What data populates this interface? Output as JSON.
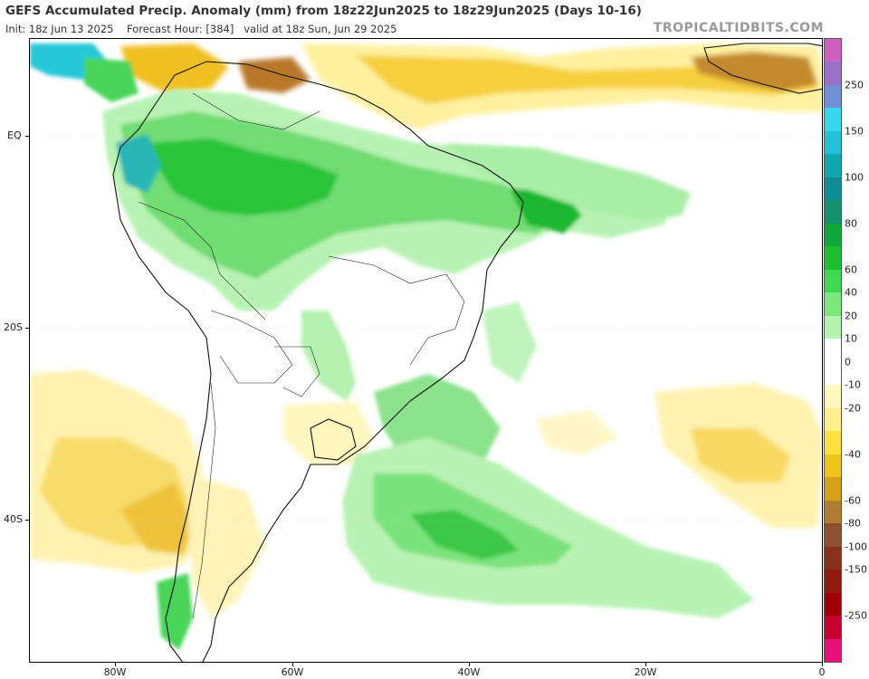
{
  "header": {
    "title": "GEFS Accumulated Precip. Anomaly (mm) from 18z22Jun2025 to 18z29Jun2025 (Days 10-16)",
    "init": "Init: 18z Jun 13 2025",
    "forecast_hour": "Forecast Hour: [384]",
    "valid": "valid at 18z Sun, Jun 29 2025",
    "brand": "TROPICALTIDBITS.COM"
  },
  "map": {
    "region": "South America",
    "variable": "Accumulated Precip. Anomaly",
    "units": "mm",
    "lat_labels": [
      "EQ",
      "20S",
      "40S"
    ],
    "lon_labels": [
      "80W",
      "60W",
      "40W",
      "20W",
      "0"
    ]
  },
  "colorbar": {
    "labels": [
      "250",
      "150",
      "100",
      "80",
      "60",
      "40",
      "20",
      "10",
      "0",
      "-10",
      "-20",
      "-40",
      "-60",
      "-80",
      "-100",
      "-150",
      "-250"
    ],
    "colors": [
      "#d060c0",
      "#9a70c8",
      "#6f8fd8",
      "#38d8f0",
      "#20c0d8",
      "#10a8b0",
      "#108c98",
      "#14906c",
      "#0ea83a",
      "#1cc030",
      "#40d850",
      "#7ce87c",
      "#b4f2b0",
      "#ffffff",
      "#ffffff",
      "#fff9c0",
      "#fff08c",
      "#ffe040",
      "#f0c418",
      "#d8a018",
      "#b47c30",
      "#905030",
      "#8a3018",
      "#901c10",
      "#a00008",
      "#c80030",
      "#e8107a"
    ]
  },
  "legend_colors": {
    "wet_light": "#b8f2b4",
    "wet_mid": "#5ed866",
    "wet_strong": "#18b428",
    "wet_extreme": "#18a8b8",
    "dry_light": "#fff5b0",
    "dry_mid": "#f4cc3c",
    "dry_strong": "#b8782a"
  }
}
